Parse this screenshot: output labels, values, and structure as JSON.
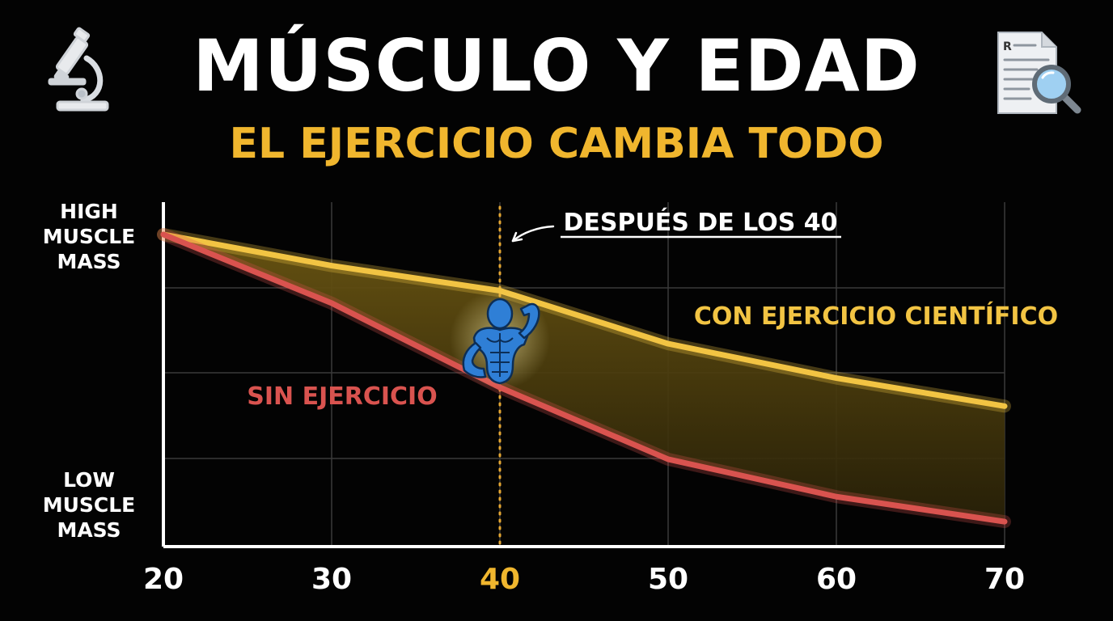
{
  "header": {
    "title": "MÚSCULO Y EDAD",
    "subtitle": "EL EJERCICIO CAMBIA TODO"
  },
  "icons": {
    "left": "microscope-icon",
    "right": "report-magnifier-icon",
    "center": "flexing-muscle-figure-icon"
  },
  "colors": {
    "background": "#030303",
    "exercise_line": "#f2c443",
    "no_exercise_line": "#d9534f",
    "highlight": "#f0b62e",
    "grid": "#3a3a3a",
    "figure": "#2f7fd6"
  },
  "chart_data": {
    "type": "line",
    "title": "MÚSCULO Y EDAD",
    "subtitle": "EL EJERCICIO CAMBIA TODO",
    "xlabel": "",
    "ylabel": "",
    "x": [
      20,
      30,
      40,
      50,
      60,
      70
    ],
    "xlim": [
      20,
      70
    ],
    "xticks": [
      "20",
      "30",
      "40",
      "50",
      "60",
      "70"
    ],
    "highlight_tick": "40",
    "yticks_top": "HIGH MUSCLE MASS",
    "yticks_bottom": "LOW MUSCLE MASS",
    "ylim": [
      0,
      100
    ],
    "grid": true,
    "series": [
      {
        "name": "CON EJERCICIO CIENTÍFICO",
        "color": "#f2c443",
        "values": [
          100,
          90,
          82,
          65,
          54,
          45
        ]
      },
      {
        "name": "SIN EJERCICIO",
        "color": "#d9534f",
        "values": [
          100,
          78,
          51,
          28,
          16,
          8
        ]
      }
    ],
    "annotations": [
      {
        "text": "DESPUÉS DE LOS 40",
        "x": 40,
        "style": "vertical-dotted-line"
      }
    ],
    "shaded_gap": true
  }
}
